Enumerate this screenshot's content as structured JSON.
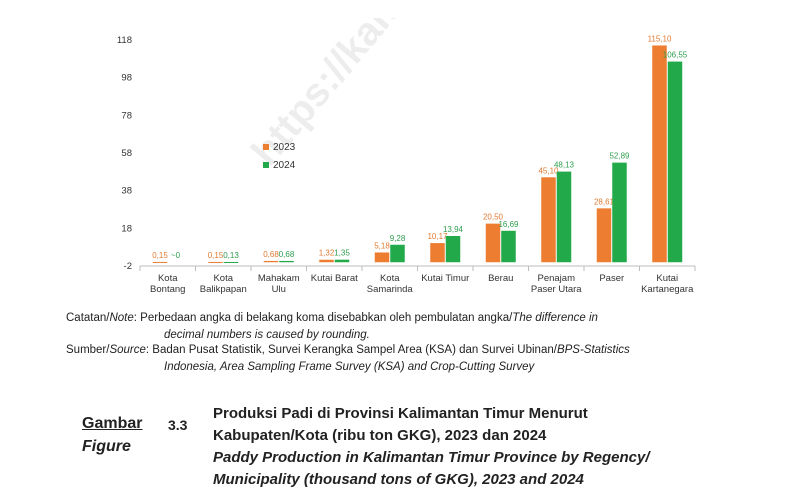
{
  "chart_data": {
    "type": "bar",
    "watermark": "https://kaltim",
    "categories": [
      [
        "Kota",
        "Bontang"
      ],
      [
        "Kota",
        "Balikpapan"
      ],
      [
        "Mahakam",
        "Ulu"
      ],
      [
        "Kutai Barat"
      ],
      [
        "Kota",
        "Samarinda"
      ],
      [
        "Kutai Timur"
      ],
      [
        "Berau"
      ],
      [
        "Penajam",
        "Paser Utara"
      ],
      [
        "Paser"
      ],
      [
        "Kutai",
        "Kartanegara"
      ]
    ],
    "series": [
      {
        "name": "2023",
        "color": "#ed7d31",
        "values": [
          0.15,
          0.15,
          0.68,
          1.32,
          5.18,
          10.17,
          20.5,
          45.1,
          28.61,
          115.1
        ],
        "labels": [
          "0,15",
          "0,15",
          "0,68",
          "1,32",
          "5,18",
          "10,17",
          "20,50",
          "45,10",
          "28,61",
          "115,10"
        ]
      },
      {
        "name": "2024",
        "color": "#22a94a",
        "values": [
          0,
          0.13,
          0.68,
          1.35,
          9.28,
          13.94,
          16.69,
          48.13,
          52.89,
          106.55
        ],
        "labels": [
          "~0",
          "0,13",
          "0,68",
          "1,35",
          "9,28",
          "13,94",
          "16,69",
          "48,13",
          "52,89",
          "106,55"
        ]
      }
    ],
    "ylim": [
      -2,
      118
    ],
    "yticks": [
      -2,
      18,
      38,
      58,
      78,
      98,
      118
    ],
    "legend_position": "upper-left",
    "grid": false
  },
  "notes": {
    "catatan_key": "Catatan/",
    "catatan_key_en": "Note",
    "catatan_text": ": Perbedaan angka di belakang koma disebabkan oleh pembulatan angka/",
    "catatan_text_en": "The difference in",
    "catatan_cont": "decimal numbers is caused by rounding.",
    "sumber_key": "Sumber/",
    "sumber_key_en": "Source",
    "sumber_text": ": Badan Pusat Statistik, Survei Kerangka Sampel Area (KSA) dan Survei Ubinan/",
    "sumber_text_en": "BPS-Statistics",
    "sumber_cont": "Indonesia, Area Sampling Frame Survey (KSA) and Crop-Cutting Survey"
  },
  "caption": {
    "gambar": "Gambar",
    "figure": "Figure",
    "number": "3.3",
    "title_id_line1": "Produksi Padi di Provinsi Kalimantan Timur Menurut",
    "title_id_line2": "Kabupaten/Kota (ribu ton GKG), 2023 dan 2024",
    "title_en_line1": "Paddy Production in Kalimantan Timur Province by Regency/",
    "title_en_line2": "Municipality (thousand tons of GKG), 2023 and 2024"
  }
}
